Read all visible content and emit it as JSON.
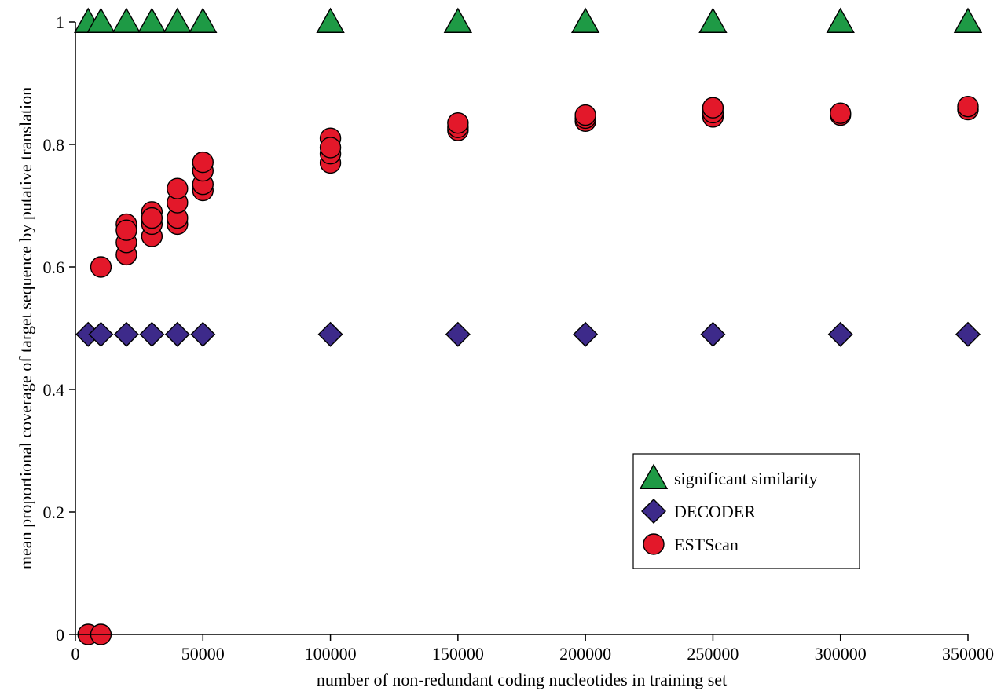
{
  "chart_data": {
    "type": "scatter",
    "xlabel": "number of non-redundant coding nucleotides in training set",
    "ylabel": "mean proportional coverage of target sequence by putative translation",
    "xlim": [
      0,
      350000
    ],
    "ylim": [
      0,
      1
    ],
    "xticks": [
      "0",
      "50000",
      "100000",
      "150000",
      "200000",
      "250000",
      "300000",
      "350000"
    ],
    "yticks": [
      "0",
      "0.2",
      "0.4",
      "0.6",
      "0.8",
      "1"
    ],
    "xtick_values": [
      0,
      50000,
      100000,
      150000,
      200000,
      250000,
      300000,
      350000
    ],
    "ytick_values": [
      0,
      0.2,
      0.4,
      0.6,
      0.8,
      1
    ],
    "grid": false,
    "legend_position": "bottom-right",
    "series": [
      {
        "name": "significant similarity",
        "marker": "triangle",
        "color": "#1e9a45",
        "points": [
          [
            5000,
            1
          ],
          [
            10000,
            1
          ],
          [
            20000,
            1
          ],
          [
            30000,
            1
          ],
          [
            40000,
            1
          ],
          [
            50000,
            1
          ],
          [
            100000,
            1
          ],
          [
            150000,
            1
          ],
          [
            200000,
            1
          ],
          [
            250000,
            1
          ],
          [
            300000,
            1
          ],
          [
            350000,
            1
          ]
        ]
      },
      {
        "name": "DECODER",
        "marker": "diamond",
        "color": "#3d2a8a",
        "points": [
          [
            5000,
            0.49
          ],
          [
            10000,
            0.49
          ],
          [
            20000,
            0.49
          ],
          [
            30000,
            0.49
          ],
          [
            40000,
            0.49
          ],
          [
            50000,
            0.49
          ],
          [
            100000,
            0.49
          ],
          [
            150000,
            0.49
          ],
          [
            200000,
            0.49
          ],
          [
            250000,
            0.49
          ],
          [
            300000,
            0.49
          ],
          [
            350000,
            0.49
          ]
        ]
      },
      {
        "name": "ESTScan",
        "marker": "circle",
        "color": "#e3182a",
        "points": [
          [
            5000,
            0
          ],
          [
            10000,
            0
          ],
          [
            10000,
            0.6
          ],
          [
            20000,
            0.62
          ],
          [
            20000,
            0.64
          ],
          [
            20000,
            0.67
          ],
          [
            20000,
            0.66
          ],
          [
            30000,
            0.65
          ],
          [
            30000,
            0.67
          ],
          [
            30000,
            0.69
          ],
          [
            30000,
            0.68
          ],
          [
            40000,
            0.67
          ],
          [
            40000,
            0.68
          ],
          [
            40000,
            0.705
          ],
          [
            40000,
            0.728
          ],
          [
            50000,
            0.725
          ],
          [
            50000,
            0.735
          ],
          [
            50000,
            0.757
          ],
          [
            50000,
            0.771
          ],
          [
            100000,
            0.77
          ],
          [
            100000,
            0.785
          ],
          [
            100000,
            0.81
          ],
          [
            100000,
            0.795
          ],
          [
            150000,
            0.823
          ],
          [
            150000,
            0.828
          ],
          [
            150000,
            0.835
          ],
          [
            200000,
            0.838
          ],
          [
            200000,
            0.843
          ],
          [
            200000,
            0.848
          ],
          [
            250000,
            0.845
          ],
          [
            250000,
            0.852
          ],
          [
            250000,
            0.86
          ],
          [
            300000,
            0.848
          ],
          [
            300000,
            0.851
          ],
          [
            350000,
            0.857
          ],
          [
            350000,
            0.862
          ]
        ]
      }
    ]
  }
}
